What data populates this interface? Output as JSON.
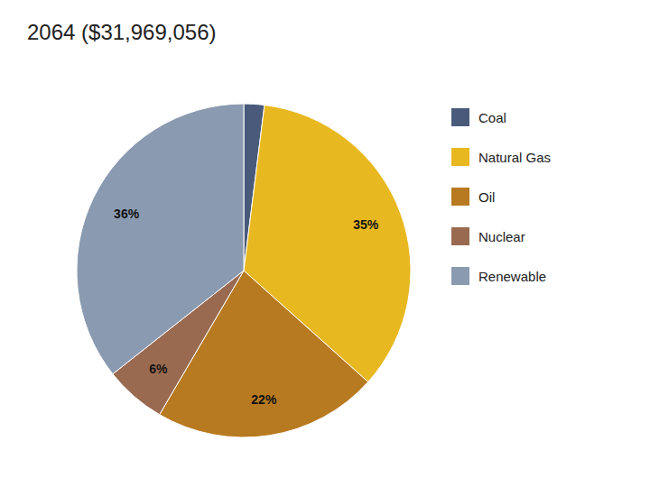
{
  "chart_data": {
    "type": "pie",
    "title": "2064 ($31,969,056)",
    "categories": [
      "Coal",
      "Natural Gas",
      "Oil",
      "Nuclear",
      "Renewable"
    ],
    "values": [
      2,
      35,
      22,
      6,
      36
    ],
    "value_labels": [
      null,
      "35%",
      "22%",
      "6%",
      "36%"
    ],
    "colors": [
      "#4a5a7a",
      "#e8b820",
      "#b87a20",
      "#9a6a50",
      "#8a9ab0"
    ],
    "data_labels": true,
    "legend": "right"
  }
}
